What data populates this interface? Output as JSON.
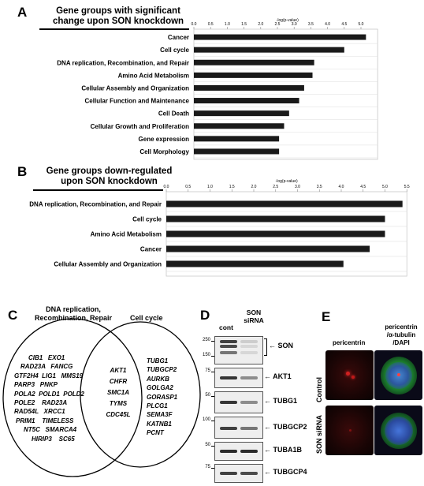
{
  "panels": {
    "a": "A",
    "b": "B",
    "c": "C",
    "d": "D",
    "e": "E"
  },
  "chart_data": [
    {
      "type": "bar",
      "orientation": "horizontal",
      "title": "Gene groups with significant change upon SON knockdown",
      "xlabel": "-log(p-value)",
      "xlim": [
        0,
        5.5
      ],
      "xticks": [
        "0.0",
        "0.5",
        "1.0",
        "1.5",
        "2.0",
        "2.5",
        "3.0",
        "3.5",
        "4.0",
        "4.5",
        "5.0"
      ],
      "categories": [
        "Cancer",
        "Cell cycle",
        "DNA replication, Recombination, and Repair",
        "Amino Acid Metabolism",
        "Cellular Assembly and Organization",
        "Cellular Function and Maintenance",
        "Cell Death",
        "Cellular Growth and Proliferation",
        "Gene expression",
        "Cell Morphology"
      ],
      "values": [
        5.15,
        4.5,
        3.6,
        3.55,
        3.3,
        3.15,
        2.85,
        2.7,
        2.55,
        2.55
      ]
    },
    {
      "type": "bar",
      "orientation": "horizontal",
      "title": "Gene groups down-regulated upon SON knockdown",
      "xlabel": "-log(p-value)",
      "xlim": [
        0,
        5.5
      ],
      "xticks": [
        "0.0",
        "0.5",
        "1.0",
        "1.5",
        "2.0",
        "2.5",
        "3.0",
        "3.5",
        "4.0",
        "4.5",
        "5.0",
        "5.5"
      ],
      "categories": [
        "DNA replication, Recombination, and Repair",
        "Cell cycle",
        "Amino Acid Metabolism",
        "Cancer",
        "Cellular Assembly and Organization"
      ],
      "values": [
        5.4,
        5.0,
        5.0,
        4.65,
        4.05
      ]
    }
  ],
  "venn": {
    "left_title_1": "DNA replication,",
    "left_title_2": "Recombination, Repair",
    "right_title": "Cell cycle",
    "left_genes": [
      "CIB1   EXO1",
      "RAD23A   FANCG",
      "GTF2H4  LIG1   MMS19",
      "PARP3   PNKP",
      "POLA2  POLD1  POLD2",
      "POLE2    RAD23A",
      "RAD54L   XRCC1",
      "PRIM1    TIMELESS",
      "NT5C   SMARCA4",
      "HIRIP3    SC65"
    ],
    "shared_genes": [
      "AKT1",
      "CHFR",
      "SMC1A",
      "TYMS",
      "CDC45L"
    ],
    "right_genes": [
      "TUBG1",
      "TUBGCP2",
      "AURKB",
      "GOLGA2",
      "GORASP1",
      "PLCG1",
      "SEMA3F",
      "KATNB1",
      "PCNT"
    ]
  },
  "western": {
    "lane1": "cont",
    "lane2_line1": "SON",
    "lane2_line2": "siRNA",
    "blots": [
      {
        "label": "SON",
        "markers": [
          "250",
          "150"
        ],
        "has_bracket": true
      },
      {
        "label": "AKT1",
        "markers": [
          "75"
        ]
      },
      {
        "label": "TUBG1",
        "markers": [
          "50"
        ]
      },
      {
        "label": "TUBGCP2",
        "markers": [
          "100"
        ]
      },
      {
        "label": "TUBA1B",
        "markers": [
          "50"
        ]
      },
      {
        "label": "TUBGCP4",
        "markers": [
          "75"
        ]
      }
    ]
  },
  "microscopy": {
    "col1": "pericentrin",
    "col2_line1": "pericentrin",
    "col2_line2": "/α-tubulin",
    "col2_line3": "/DAPI",
    "row1": "Control",
    "row2": "SON siRNA"
  }
}
